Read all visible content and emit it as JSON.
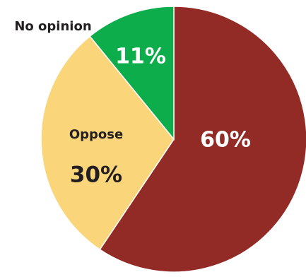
{
  "chart_data": {
    "type": "pie",
    "slices": [
      {
        "value": 60,
        "label": "",
        "value_label": "60%",
        "color": "#922A25"
      },
      {
        "value": 30,
        "label": "Oppose",
        "value_label": "30%",
        "color": "#FAD57A"
      },
      {
        "value": 11,
        "label": "No opinion",
        "value_label": "11%",
        "color": "#0EAD4C"
      }
    ],
    "start_angle_deg": 0,
    "direction": "clockwise",
    "legend": "none",
    "label_color_inside": "#ffffff"
  }
}
